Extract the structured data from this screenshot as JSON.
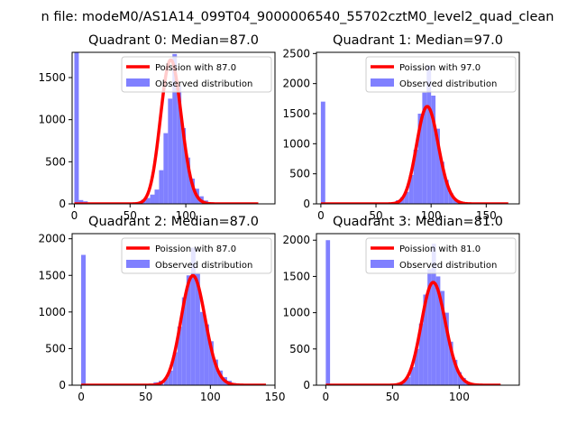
{
  "figure": {
    "suptitle": "n file: modeM0/AS1A14_099T04_9000006540_55702cztM0_level2_quad_clean"
  },
  "colors": {
    "poisson_line": "#ff0000",
    "hist_bar": "#8080ff",
    "axis": "#000000",
    "background": "#ffffff"
  },
  "chart_data": [
    {
      "type": "bar",
      "title": "Quadrant 0: Median=87.0",
      "median": 87.0,
      "xlim": [
        -2,
        180
      ],
      "ylim": [
        0,
        1800
      ],
      "xticks": [
        0,
        50,
        100
      ],
      "yticks": [
        0,
        500,
        1000,
        1500
      ],
      "bin_width": 4,
      "zero_bin": 1800,
      "bins": [
        [
          4,
          45
        ],
        [
          8,
          30
        ],
        [
          60,
          50
        ],
        [
          64,
          70
        ],
        [
          68,
          110
        ],
        [
          72,
          170
        ],
        [
          76,
          400
        ],
        [
          80,
          840
        ],
        [
          84,
          1250
        ],
        [
          88,
          1780
        ],
        [
          92,
          1400
        ],
        [
          96,
          900
        ],
        [
          100,
          550
        ],
        [
          104,
          300
        ],
        [
          108,
          180
        ],
        [
          112,
          90
        ],
        [
          116,
          40
        ],
        [
          120,
          20
        ]
      ],
      "poisson": {
        "mean": 87.0,
        "scale": 4,
        "x_range": [
          0,
          165
        ]
      },
      "legend": [
        "Poission with 87.0",
        "Observed distribution"
      ]
    },
    {
      "type": "bar",
      "title": "Quadrant 1: Median=97.0",
      "median": 97.0,
      "xlim": [
        -4,
        180
      ],
      "ylim": [
        0,
        2520
      ],
      "xticks": [
        0,
        50,
        100,
        150
      ],
      "yticks": [
        0,
        500,
        1000,
        1500,
        2000,
        2500
      ],
      "bin_width": 4,
      "zero_bin": 1700,
      "bins": [
        [
          64,
          30
        ],
        [
          68,
          60
        ],
        [
          72,
          110
        ],
        [
          76,
          200
        ],
        [
          80,
          480
        ],
        [
          84,
          900
        ],
        [
          88,
          1500
        ],
        [
          92,
          1850
        ],
        [
          96,
          2300
        ],
        [
          100,
          1800
        ],
        [
          104,
          1250
        ],
        [
          108,
          700
        ],
        [
          112,
          400
        ],
        [
          116,
          180
        ],
        [
          120,
          80
        ],
        [
          124,
          30
        ]
      ],
      "poisson": {
        "mean": 97.0,
        "scale": 4,
        "x_range": [
          0,
          170
        ]
      },
      "legend": [
        "Poission with 97.0",
        "Observed distribution"
      ]
    },
    {
      "type": "bar",
      "title": "Quadrant 2: Median=87.0",
      "median": 87.0,
      "xlim": [
        -7,
        150
      ],
      "ylim": [
        0,
        2070
      ],
      "xticks": [
        0,
        50,
        100,
        150
      ],
      "yticks": [
        0,
        500,
        1000,
        1500,
        2000
      ],
      "bin_width": 3.5,
      "zero_bin": 1780,
      "bins": [
        [
          52,
          20
        ],
        [
          56,
          40
        ],
        [
          60,
          60
        ],
        [
          64,
          100
        ],
        [
          67.5,
          200
        ],
        [
          71,
          450
        ],
        [
          74.5,
          800
        ],
        [
          78,
          1200
        ],
        [
          81.5,
          1500
        ],
        [
          85,
          1880
        ],
        [
          88.5,
          1520
        ],
        [
          92,
          1000
        ],
        [
          95.5,
          830
        ],
        [
          99,
          600
        ],
        [
          102.5,
          350
        ],
        [
          106,
          200
        ],
        [
          109.5,
          110
        ],
        [
          113,
          60
        ],
        [
          116.5,
          30
        ]
      ],
      "poisson": {
        "mean": 87.0,
        "scale": 3.5,
        "x_range": [
          0,
          143
        ]
      },
      "legend": [
        "Poission with 87.0",
        "Observed distribution"
      ]
    },
    {
      "type": "bar",
      "title": "Quadrant 3: Median=81.0",
      "median": 81.0,
      "xlim": [
        -7,
        145
      ],
      "ylim": [
        0,
        2090
      ],
      "xticks": [
        0,
        50,
        100
      ],
      "yticks": [
        0,
        500,
        1000,
        1500,
        2000
      ],
      "bin_width": 3.2,
      "zero_bin": 2000,
      "bins": [
        [
          54,
          20
        ],
        [
          57,
          50
        ],
        [
          60.2,
          110
        ],
        [
          63.4,
          250
        ],
        [
          66.6,
          500
        ],
        [
          69.8,
          850
        ],
        [
          73,
          1250
        ],
        [
          76.2,
          1600
        ],
        [
          79.4,
          1950
        ],
        [
          82.6,
          1500
        ],
        [
          85.8,
          1300
        ],
        [
          89,
          1000
        ],
        [
          92.2,
          600
        ],
        [
          95.4,
          350
        ],
        [
          98.6,
          180
        ],
        [
          101.8,
          100
        ],
        [
          105,
          40
        ]
      ],
      "poisson": {
        "mean": 81.0,
        "scale": 3.2,
        "x_range": [
          0,
          131
        ]
      },
      "legend": [
        "Poission with 81.0",
        "Observed distribution"
      ]
    }
  ]
}
